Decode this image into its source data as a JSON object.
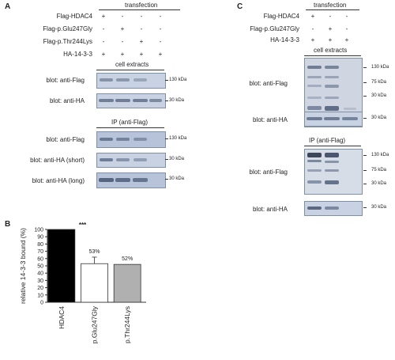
{
  "panelA": {
    "letter": "A",
    "transfection_header": "transfection",
    "rows": [
      "Flag-HDAC4",
      "Flag-p.Glu247Gly",
      "Flag-p.Thr244Lys",
      "HA-14-3-3"
    ],
    "signs": [
      [
        "+",
        "-",
        "-",
        "-"
      ],
      [
        "-",
        "+",
        "-",
        "-"
      ],
      [
        "-",
        "-",
        "+",
        "-"
      ],
      [
        "+",
        "+",
        "+",
        "+"
      ]
    ],
    "section_extracts": "cell extracts",
    "section_ip": "IP (anti-Flag)",
    "blots": [
      {
        "label": "blot: anti-Flag",
        "marker": "130 kDa"
      },
      {
        "label": "blot: anti-HA",
        "marker": "30 kDa"
      },
      {
        "label": "blot: anti-Flag",
        "marker": "130 kDa"
      },
      {
        "label": "blot: anti-HA (short)",
        "marker": "30 kDa"
      },
      {
        "label": "blot: anti-HA (long)",
        "marker": "30 kDa"
      }
    ]
  },
  "panelB": {
    "letter": "B",
    "significance": "***"
  },
  "panelC": {
    "letter": "C",
    "transfection_header": "transfection",
    "rows": [
      "Flag-HDAC4",
      "Flag-p.Glu247Gly",
      "HA-14-3-3"
    ],
    "signs": [
      [
        "+",
        "-",
        "-"
      ],
      [
        "-",
        "+",
        "-"
      ],
      [
        "+",
        "+",
        "+"
      ]
    ],
    "section_extracts": "cell extracts",
    "section_ip": "IP (anti-Flag)",
    "blots": [
      {
        "label": "blot: anti-Flag",
        "markers": [
          "130 kDa",
          "75 kDa",
          "30 kDa"
        ]
      },
      {
        "label": "blot: anti-HA",
        "markers": [
          "30 kDa"
        ]
      },
      {
        "label": "blot: anti-Flag",
        "markers": [
          "130 kDa",
          "75 kDa",
          "30 kDa"
        ]
      },
      {
        "label": "blot: anti-HA",
        "markers": [
          "30 kDa"
        ]
      }
    ]
  },
  "chart_data": {
    "type": "bar",
    "categories": [
      "HDAC4",
      "p.Glu247Gly",
      "p.Thr244Lys"
    ],
    "values": [
      100,
      53,
      52
    ],
    "errors": [
      0,
      9,
      0
    ],
    "value_labels": [
      "",
      "53%",
      "52%"
    ],
    "colors": [
      "#000000",
      "#ffffff",
      "#b0b0b0"
    ],
    "ylabel": "relative 14-3-3 bound (%)",
    "ylim": [
      0,
      100
    ],
    "yticks": [
      0,
      10,
      20,
      30,
      40,
      50,
      60,
      70,
      80,
      90,
      100
    ],
    "significance": "***"
  }
}
